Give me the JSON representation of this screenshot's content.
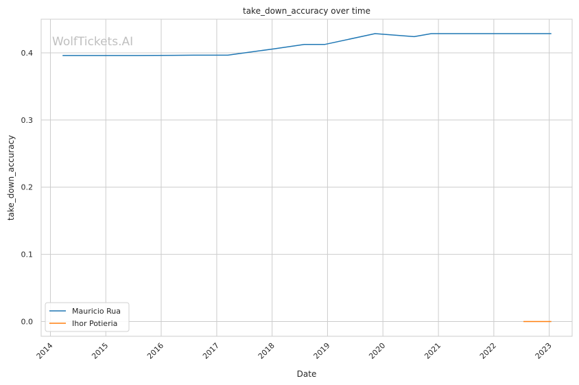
{
  "watermark": "WolfTickets.AI",
  "chart_data": {
    "type": "line",
    "title": "take_down_accuracy over time",
    "xlabel": "Date",
    "ylabel": "take_down_accuracy",
    "x_ticks": [
      "2014",
      "2015",
      "2016",
      "2017",
      "2018",
      "2019",
      "2020",
      "2021",
      "2022",
      "2023"
    ],
    "y_ticks": [
      "0.0",
      "0.1",
      "0.2",
      "0.3",
      "0.4"
    ],
    "xlim": [
      "2013-11-01",
      "2023-06-01"
    ],
    "ylim": [
      -0.022,
      0.45
    ],
    "grid": true,
    "legend_position": "lower-left",
    "series": [
      {
        "name": "Mauricio Rua",
        "color": "#1f77b4",
        "points": [
          [
            "2014-03-22",
            0.396
          ],
          [
            "2015-08-01",
            0.396
          ],
          [
            "2016-08-01",
            0.3965
          ],
          [
            "2017-03-15",
            0.3965
          ],
          [
            "2018-01-15",
            0.406
          ],
          [
            "2018-08-01",
            0.4125
          ],
          [
            "2018-12-15",
            0.4125
          ],
          [
            "2019-11-10",
            0.4285
          ],
          [
            "2020-07-25",
            0.424
          ],
          [
            "2020-11-15",
            0.4285
          ],
          [
            "2023-01-15",
            0.4285
          ]
        ]
      },
      {
        "name": "Ihor Potieria",
        "color": "#ff7f0e",
        "points": [
          [
            "2022-07-15",
            0.0
          ],
          [
            "2023-01-15",
            0.0
          ]
        ]
      }
    ]
  }
}
